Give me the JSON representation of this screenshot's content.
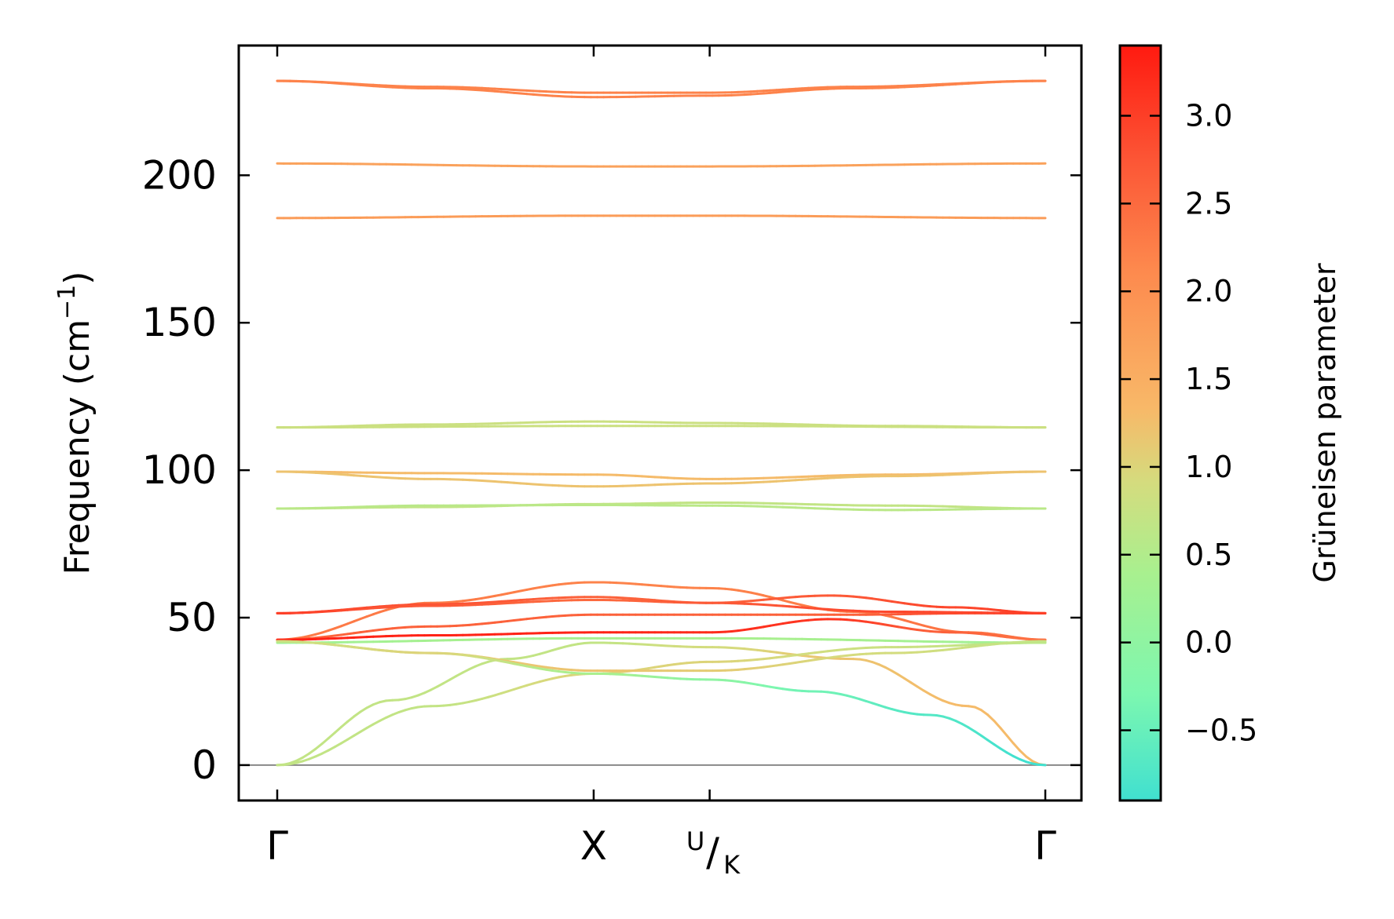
{
  "chart_data": {
    "type": "line",
    "ylabel": "Frequency (cm⁻¹)",
    "ylim": [
      -12,
      244
    ],
    "yticks": [
      0,
      50,
      100,
      150,
      200
    ],
    "ytick_labels": [
      "0",
      "50",
      "100",
      "150",
      "200"
    ],
    "x_path": [
      {
        "label": "Γ",
        "pos": 0.0
      },
      {
        "label": "X",
        "pos": 0.412
      },
      {
        "label": "U/K",
        "label_top": "U",
        "label_bottom": "K",
        "pos": 0.563
      },
      {
        "label": "Γ",
        "pos": 1.0
      }
    ],
    "zero_line": true,
    "colorbar": {
      "label": "Grüneisen parameter",
      "range": [
        -0.9,
        3.4
      ],
      "ticks": [
        -0.5,
        0.0,
        0.5,
        1.0,
        1.5,
        2.0,
        2.5,
        3.0
      ],
      "tick_labels": [
        "−0.5",
        "0.0",
        "0.5",
        "1.0",
        "1.5",
        "2.0",
        "2.5",
        "3.0"
      ],
      "colormap": "rainbow (turquoise → green → yellow → orange → red)"
    },
    "series": [
      {
        "x": [
          0,
          0.2,
          0.412,
          0.563,
          0.75,
          1.0
        ],
        "freq": [
          232,
          230,
          228,
          228,
          230,
          232
        ],
        "gruneisen": [
          2.2,
          2.2,
          2.2,
          2.2,
          2.2,
          2.2
        ]
      },
      {
        "x": [
          0,
          0.2,
          0.412,
          0.563,
          0.75,
          1.0
        ],
        "freq": [
          232,
          229.5,
          226.5,
          227,
          229.5,
          232
        ],
        "gruneisen": [
          2.2,
          2.2,
          2.2,
          2.2,
          2.2,
          2.2
        ]
      },
      {
        "x": [
          0,
          0.412,
          0.563,
          1.0
        ],
        "freq": [
          204,
          203,
          203,
          204
        ],
        "gruneisen": [
          1.7,
          1.7,
          1.7,
          1.7
        ]
      },
      {
        "x": [
          0,
          0.412,
          0.563,
          1.0
        ],
        "freq": [
          185.5,
          186.3,
          186.3,
          185.5
        ],
        "gruneisen": [
          1.8,
          1.8,
          1.8,
          1.8
        ]
      },
      {
        "x": [
          0,
          0.2,
          0.412,
          0.563,
          0.8,
          1.0
        ],
        "freq": [
          114.5,
          115.5,
          116.5,
          116,
          115,
          114.5
        ],
        "gruneisen": [
          0.8,
          0.8,
          0.8,
          0.8,
          0.8,
          0.8
        ]
      },
      {
        "x": [
          0,
          0.412,
          0.563,
          1.0
        ],
        "freq": [
          114.5,
          115,
          115,
          114.5
        ],
        "gruneisen": [
          0.8,
          0.8,
          0.8,
          0.8
        ]
      },
      {
        "x": [
          0,
          0.2,
          0.412,
          0.563,
          0.8,
          1.0
        ],
        "freq": [
          99.5,
          99,
          98.5,
          97,
          98.5,
          99.5
        ],
        "gruneisen": [
          1.3,
          1.3,
          1.3,
          1.3,
          1.3,
          1.3
        ]
      },
      {
        "x": [
          0,
          0.2,
          0.412,
          0.563,
          0.8,
          1.0
        ],
        "freq": [
          99.5,
          97,
          94.5,
          95.5,
          98,
          99.5
        ],
        "gruneisen": [
          1.2,
          1.2,
          1.2,
          1.2,
          1.2,
          1.2
        ]
      },
      {
        "x": [
          0,
          0.2,
          0.412,
          0.563,
          0.8,
          1.0
        ],
        "freq": [
          87,
          87.5,
          88.5,
          89,
          88,
          87
        ],
        "gruneisen": [
          0.7,
          0.7,
          0.7,
          0.7,
          0.7,
          0.7
        ]
      },
      {
        "x": [
          0,
          0.2,
          0.412,
          0.563,
          0.8,
          1.0
        ],
        "freq": [
          87,
          88,
          88.2,
          88,
          86.5,
          87
        ],
        "gruneisen": [
          0.6,
          0.6,
          0.6,
          0.6,
          0.6,
          0.6
        ]
      },
      {
        "x": [
          0,
          0.2,
          0.412,
          0.563,
          0.75,
          0.9,
          1.0
        ],
        "freq": [
          42.5,
          55,
          62,
          60,
          52,
          45,
          42.5
        ],
        "gruneisen": [
          2.3,
          2.3,
          2.2,
          2.2,
          2.3,
          2.4,
          2.4
        ]
      },
      {
        "x": [
          0,
          0.2,
          0.412,
          0.563,
          0.72,
          0.88,
          1.0
        ],
        "freq": [
          51.5,
          54.5,
          57,
          55,
          57.5,
          53.5,
          51.5
        ],
        "gruneisen": [
          3.0,
          2.8,
          2.6,
          2.6,
          2.7,
          2.9,
          3.0
        ]
      },
      {
        "x": [
          0,
          0.2,
          0.412,
          0.563,
          0.8,
          1.0
        ],
        "freq": [
          51.5,
          54,
          56,
          55,
          52,
          51.5
        ],
        "gruneisen": [
          3.0,
          2.7,
          2.5,
          2.7,
          2.9,
          3.0
        ]
      },
      {
        "x": [
          0,
          0.2,
          0.412,
          0.563,
          0.75,
          0.9,
          1.0
        ],
        "freq": [
          42.5,
          47,
          51,
          51,
          51,
          51.5,
          51.5
        ],
        "gruneisen": [
          2.6,
          2.6,
          2.6,
          2.6,
          2.6,
          2.9,
          3.0
        ]
      },
      {
        "x": [
          0,
          0.2,
          0.412,
          0.563,
          0.72,
          0.88,
          1.0
        ],
        "freq": [
          42.5,
          44,
          45,
          45,
          49.5,
          45,
          42.5
        ],
        "gruneisen": [
          3.3,
          3.3,
          3.3,
          3.2,
          3.1,
          2.6,
          2.4
        ]
      },
      {
        "x": [
          0,
          0.412,
          0.563,
          1.0
        ],
        "freq": [
          41.5,
          43,
          43,
          41.5
        ],
        "gruneisen": [
          0.3,
          0.4,
          0.4,
          0.3
        ]
      },
      {
        "x": [
          0,
          0.15,
          0.3,
          0.412,
          0.563,
          0.75,
          0.9,
          1.0
        ],
        "freq": [
          0,
          22,
          36,
          41.5,
          40,
          36,
          20,
          0
        ],
        "gruneisen": [
          0.7,
          0.7,
          0.7,
          0.7,
          0.9,
          1.2,
          1.3,
          1.3
        ]
      },
      {
        "x": [
          0,
          0.2,
          0.412,
          0.563,
          0.8,
          1.0
        ],
        "freq": [
          0,
          20,
          31,
          35,
          40,
          41.5
        ],
        "gruneisen": [
          0.7,
          0.7,
          1.0,
          1.0,
          0.8,
          0.6
        ]
      },
      {
        "x": [
          0,
          0.2,
          0.412,
          0.563,
          0.8,
          1.0
        ],
        "freq": [
          42,
          38,
          32,
          32,
          38,
          42
        ],
        "gruneisen": [
          0.8,
          1.1,
          1.2,
          1.1,
          0.9,
          0.7
        ]
      },
      {
        "x": [
          0,
          0.2,
          0.412,
          0.563,
          0.7,
          0.85,
          1.0
        ],
        "freq": [
          42,
          38,
          31,
          29,
          25,
          17,
          0
        ],
        "gruneisen": [
          0.8,
          1.0,
          0.4,
          0.0,
          -0.4,
          -0.7,
          -0.9
        ]
      }
    ]
  }
}
